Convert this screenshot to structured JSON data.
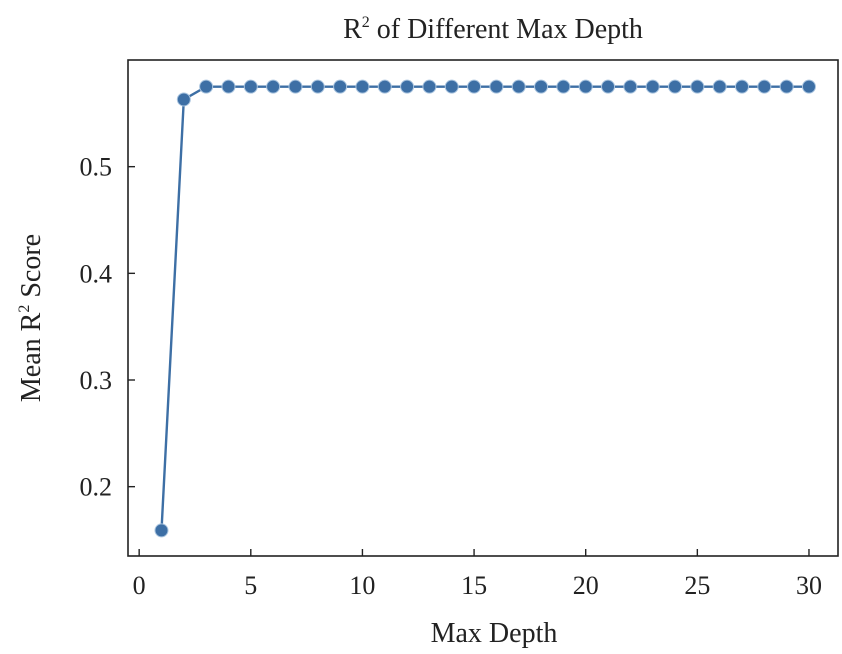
{
  "chart_data": {
    "type": "line",
    "title": {
      "base": "R",
      "sup": "2",
      "rest": " of Different Max Depth"
    },
    "xlabel": "Max Depth",
    "ylabel": {
      "base": "Mean R",
      "sup": "2",
      "rest": " Score"
    },
    "xlim": [
      -0.5,
      31.3
    ],
    "ylim": [
      0.135,
      0.6
    ],
    "xticks": [
      0,
      5,
      10,
      15,
      20,
      25,
      30
    ],
    "yticks": [
      0.2,
      0.3,
      0.4,
      0.5
    ],
    "yticklabels": [
      "0.2",
      "0.3",
      "0.4",
      "0.5"
    ],
    "grid": false,
    "legend": "none",
    "series": [
      {
        "color": "#3d6fa5",
        "x": [
          1,
          2,
          3,
          4,
          5,
          6,
          7,
          8,
          9,
          10,
          11,
          12,
          13,
          14,
          15,
          16,
          17,
          18,
          19,
          20,
          21,
          22,
          23,
          24,
          25,
          26,
          27,
          28,
          29,
          30
        ],
        "y": [
          0.159,
          0.563,
          0.575,
          0.575,
          0.575,
          0.575,
          0.575,
          0.575,
          0.575,
          0.575,
          0.575,
          0.575,
          0.575,
          0.575,
          0.575,
          0.575,
          0.575,
          0.575,
          0.575,
          0.575,
          0.575,
          0.575,
          0.575,
          0.575,
          0.575,
          0.575,
          0.575,
          0.575,
          0.575,
          0.575
        ]
      }
    ]
  }
}
